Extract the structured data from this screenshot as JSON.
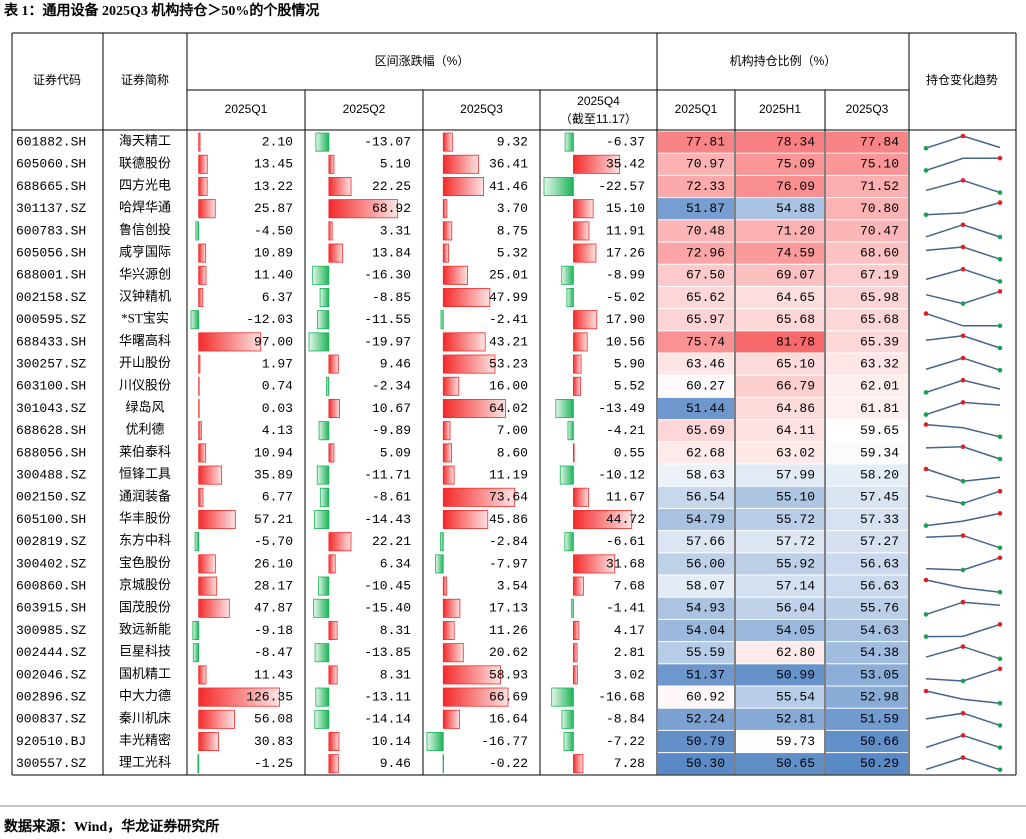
{
  "title": "表 1：通用设备 2025Q3 机构持仓＞50%的个股情况",
  "source": "数据来源：Wind，华龙证券研究所",
  "table": {
    "headers": {
      "code": "证券代码",
      "name": "证券简称",
      "change_group": "区间涨跌幅（%）",
      "holding_group": "机构持仓比例（%）",
      "trend": "持仓变化趋势",
      "change_periods": [
        "2025Q1",
        "2025Q2",
        "2025Q3",
        "2025Q4"
      ],
      "q4_note": "（截至11.17）",
      "holding_periods": [
        "2025Q1",
        "2025H1",
        "2025Q3"
      ]
    },
    "rows": [
      [
        "601882.SH",
        "海天精工",
        "2.10",
        "-13.07",
        "9.32",
        "-6.37",
        "77.81",
        "78.34",
        "77.84"
      ],
      [
        "605060.SH",
        "联德股份",
        "13.45",
        "5.10",
        "36.41",
        "35.42",
        "70.97",
        "75.09",
        "75.10"
      ],
      [
        "688665.SH",
        "四方光电",
        "13.22",
        "22.25",
        "41.46",
        "-22.57",
        "72.33",
        "76.09",
        "71.52"
      ],
      [
        "301137.SZ",
        "哈焊华通",
        "25.87",
        "68.92",
        "3.70",
        "15.10",
        "51.87",
        "54.88",
        "70.80"
      ],
      [
        "600783.SH",
        "鲁信创投",
        "-4.50",
        "3.31",
        "8.75",
        "11.91",
        "70.48",
        "71.20",
        "70.47"
      ],
      [
        "605056.SH",
        "咸亨国际",
        "10.89",
        "13.84",
        "5.32",
        "17.26",
        "72.96",
        "74.59",
        "68.60"
      ],
      [
        "688001.SH",
        "华兴源创",
        "11.40",
        "-16.30",
        "25.01",
        "-8.99",
        "67.50",
        "69.07",
        "67.19"
      ],
      [
        "002158.SZ",
        "汉钟精机",
        "6.37",
        "-8.85",
        "47.99",
        "-5.02",
        "65.62",
        "64.65",
        "65.98"
      ],
      [
        "000595.SZ",
        "*ST宝实",
        "-12.03",
        "-11.55",
        "-2.41",
        "17.90",
        "65.97",
        "65.68",
        "65.68"
      ],
      [
        "688433.SH",
        "华曙高科",
        "97.00",
        "-19.97",
        "43.21",
        "10.56",
        "75.74",
        "81.78",
        "65.39"
      ],
      [
        "300257.SZ",
        "开山股份",
        "1.97",
        "9.46",
        "53.23",
        "5.90",
        "63.46",
        "65.10",
        "63.32"
      ],
      [
        "603100.SH",
        "川仪股份",
        "0.74",
        "-2.34",
        "16.00",
        "5.52",
        "60.27",
        "66.79",
        "62.01"
      ],
      [
        "301043.SZ",
        "绿岛风",
        "0.03",
        "10.67",
        "64.02",
        "-13.49",
        "51.44",
        "64.86",
        "61.81"
      ],
      [
        "688628.SH",
        "优利德",
        "4.13",
        "-9.89",
        "7.00",
        "-4.21",
        "65.69",
        "64.11",
        "59.65"
      ],
      [
        "688056.SH",
        "莱伯泰科",
        "10.94",
        "5.09",
        "8.60",
        "0.55",
        "62.68",
        "63.02",
        "59.34"
      ],
      [
        "300488.SZ",
        "恒锋工具",
        "35.89",
        "-11.71",
        "11.19",
        "-10.12",
        "58.63",
        "57.99",
        "58.20"
      ],
      [
        "002150.SZ",
        "通润装备",
        "6.77",
        "-8.61",
        "73.64",
        "11.67",
        "56.54",
        "55.10",
        "57.45"
      ],
      [
        "605100.SH",
        "华丰股份",
        "57.21",
        "-14.43",
        "45.86",
        "44.72",
        "54.79",
        "55.72",
        "57.33"
      ],
      [
        "002819.SZ",
        "东方中科",
        "-5.70",
        "22.21",
        "-2.84",
        "-6.61",
        "57.66",
        "57.72",
        "57.27"
      ],
      [
        "300402.SZ",
        "宝色股份",
        "26.10",
        "6.34",
        "-7.97",
        "31.68",
        "56.00",
        "55.92",
        "56.63"
      ],
      [
        "600860.SH",
        "京城股份",
        "28.17",
        "-10.45",
        "3.54",
        "7.68",
        "58.07",
        "57.14",
        "56.63"
      ],
      [
        "603915.SH",
        "国茂股份",
        "47.87",
        "-15.40",
        "17.13",
        "-1.41",
        "54.93",
        "56.04",
        "55.76"
      ],
      [
        "300985.SZ",
        "致远新能",
        "-9.18",
        "8.31",
        "11.26",
        "4.17",
        "54.04",
        "54.05",
        "54.63"
      ],
      [
        "002444.SZ",
        "巨星科技",
        "-8.47",
        "-13.85",
        "20.62",
        "2.81",
        "55.59",
        "62.80",
        "54.38"
      ],
      [
        "002046.SZ",
        "国机精工",
        "11.43",
        "8.31",
        "58.93",
        "3.02",
        "51.37",
        "50.99",
        "53.05"
      ],
      [
        "002896.SZ",
        "中大力德",
        "126.35",
        "-13.11",
        "66.69",
        "-16.68",
        "60.92",
        "55.54",
        "52.98"
      ],
      [
        "000837.SZ",
        "秦川机床",
        "56.08",
        "-14.14",
        "16.64",
        "-8.84",
        "52.24",
        "52.81",
        "51.59"
      ],
      [
        "920510.BJ",
        "丰光精密",
        "30.83",
        "10.14",
        "-16.77",
        "-7.22",
        "50.79",
        "59.73",
        "50.66"
      ],
      [
        "300557.SZ",
        "理工光科",
        "-1.25",
        "9.46",
        "-0.22",
        "7.28",
        "50.30",
        "50.65",
        "50.29"
      ]
    ]
  }
}
